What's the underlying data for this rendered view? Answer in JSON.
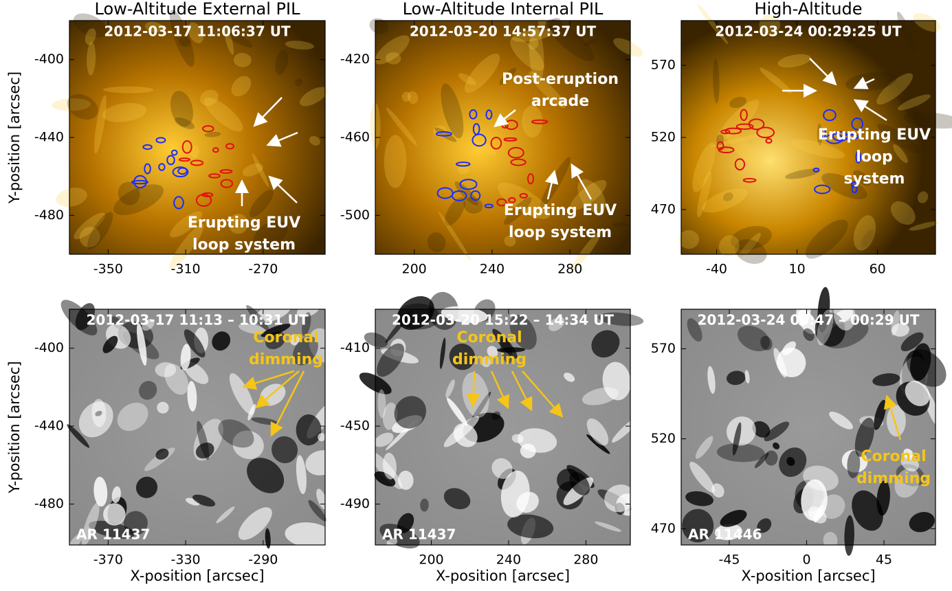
{
  "panels": [
    {
      "title": "Low-Altitude External PIL",
      "timestamp": "2012-03-17 11:06:37 UT",
      "annotations": [
        {
          "lines": [
            "Erupting EUV",
            "loop system"
          ]
        }
      ],
      "xlim": [
        -370,
        -238
      ],
      "ylim": [
        -500,
        -380
      ],
      "xticks": [
        -350,
        -310,
        -270
      ],
      "yticks": [
        -400,
        -440,
        -480
      ],
      "ylabel": "Y-position [arcsec]"
    },
    {
      "title": "Low-Altitude Internal PIL",
      "timestamp": "2012-03-20 14:57:37 UT",
      "annotations": [
        {
          "lines": [
            "Post-eruption",
            "arcade"
          ]
        },
        {
          "lines": [
            "Erupting EUV",
            "loop system"
          ]
        }
      ],
      "xlim": [
        180,
        311
      ],
      "ylim": [
        -520,
        -400
      ],
      "xticks": [
        200,
        240,
        280
      ],
      "yticks": [
        -420,
        -460,
        -500
      ]
    },
    {
      "title": "High-Altitude",
      "timestamp": "2012-03-24 00:29:25 UT",
      "annotations": [
        {
          "lines": [
            "Erupting EUV",
            "loop",
            "system"
          ]
        }
      ],
      "xlim": [
        -62,
        96
      ],
      "ylim": [
        439,
        601
      ],
      "xticks": [
        -40,
        10,
        60
      ],
      "yticks": [
        570,
        520,
        470
      ]
    },
    {
      "timestamp": "2012-03-17 11:13 – 10:31 UT",
      "annotations": [
        {
          "lines": [
            "Coronal",
            "dimming"
          ]
        }
      ],
      "region": "AR 11437",
      "xlim": [
        -390,
        -258
      ],
      "ylim": [
        -501,
        -380
      ],
      "xticks": [
        -370,
        -330,
        -290
      ],
      "yticks": [
        -400,
        -440,
        -480
      ],
      "xlabel": "X-position [arcsec]",
      "ylabel": "Y-position [arcsec]"
    },
    {
      "timestamp": "2012-03-20 15:22 – 14:34 UT",
      "annotations": [
        {
          "lines": [
            "Coronal",
            "dimming"
          ]
        }
      ],
      "region": "AR 11437",
      "xlim": [
        171,
        303
      ],
      "ylim": [
        -511,
        -390
      ],
      "xticks": [
        200,
        240,
        280
      ],
      "yticks": [
        -410,
        -450,
        -490
      ],
      "xlabel": "X-position [arcsec]"
    },
    {
      "timestamp": "2012-03-24 00:47 – 00:29 UT",
      "annotations": [
        {
          "lines": [
            "Coronal",
            "dimming"
          ]
        }
      ],
      "region": "AR 11446",
      "xlim": [
        -73,
        75
      ],
      "ylim": [
        461,
        592
      ],
      "xticks": [
        -45,
        0,
        45
      ],
      "yticks": [
        570,
        520,
        470
      ],
      "xlabel": "X-position [arcsec]"
    }
  ]
}
